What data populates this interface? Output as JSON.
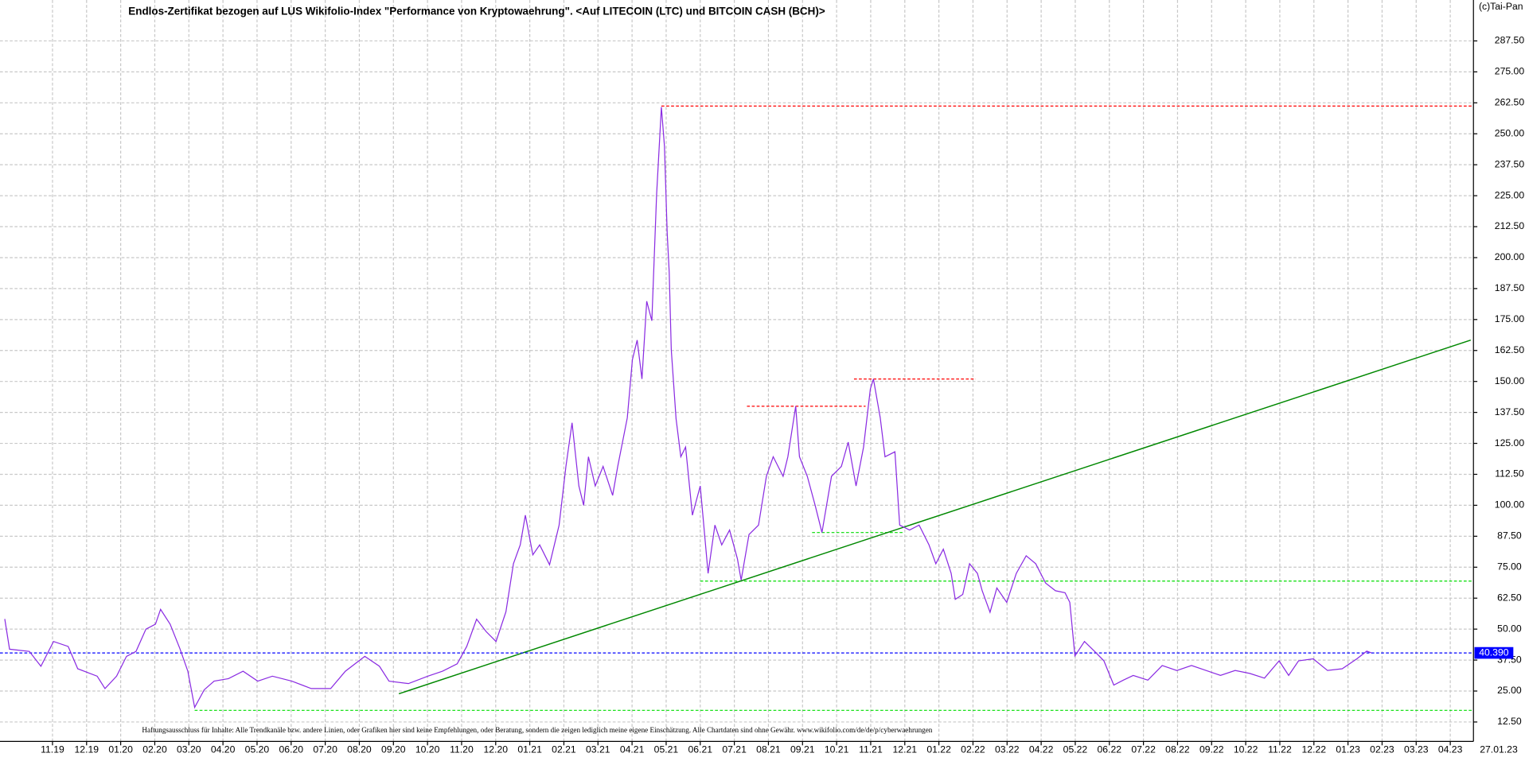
{
  "chart_data": {
    "type": "line",
    "title": "Endlos-Zertifikat bezogen auf LUS Wikifolio-Index \"Performance von Kryptowaehrung\". <Auf LITECOIN (LTC) und BITCOIN CASH (BCH)>",
    "copyright": "(c)Tai-Pan",
    "disclaimer": "Haftungsausschluss für Inhalte: Alle Trendkanäle bzw. andere Linien, oder Grafiken hier sind keine Empfehlungen, oder Beratung, sondern die zeigen lediglich meine eigene Einschätzung. Alle Chartdaten sind ohne Gewähr.  www.wikifolio.com/de/de/p/cyberwaehrungen",
    "color": "#8a2be2",
    "x": [
      -1.4,
      -1.26,
      -0.68,
      -0.34,
      0.03,
      0.46,
      0.74,
      1.31,
      1.54,
      1.88,
      2.17,
      2.45,
      2.74,
      3.02,
      3.17,
      3.45,
      3.74,
      3.97,
      4.17,
      4.45,
      4.74,
      5.16,
      5.59,
      6.02,
      6.45,
      7.02,
      7.59,
      8.16,
      8.59,
      9.16,
      9.59,
      9.87,
      10.44,
      11.01,
      11.44,
      11.87,
      12.15,
      12.44,
      12.72,
      13.01,
      13.3,
      13.52,
      13.72,
      13.87,
      14.09,
      14.29,
      14.58,
      14.86,
      15.06,
      15.24,
      15.44,
      15.58,
      15.72,
      15.92,
      16.15,
      16.43,
      16.58,
      16.86,
      17.01,
      17.15,
      17.29,
      17.43,
      17.58,
      17.72,
      17.86,
      17.95,
      18.03,
      18.09,
      18.15,
      18.29,
      18.43,
      18.57,
      18.77,
      19.0,
      19.23,
      19.43,
      19.63,
      19.86,
      20.09,
      20.2,
      20.43,
      20.71,
      20.94,
      21.14,
      21.43,
      21.57,
      21.8,
      21.91,
      22.14,
      22.37,
      22.57,
      22.85,
      23.14,
      23.34,
      23.57,
      23.79,
      23.99,
      24.08,
      24.28,
      24.42,
      24.71,
      24.85,
      25.14,
      25.42,
      25.71,
      25.91,
      26.13,
      26.36,
      26.48,
      26.7,
      26.9,
      27.13,
      27.27,
      27.5,
      27.7,
      27.99,
      28.27,
      28.56,
      28.84,
      29.13,
      29.42,
      29.7,
      29.84,
      29.99,
      30.27,
      30.56,
      30.84,
      31.13,
      31.41,
      31.7,
      32.13,
      32.55,
      32.98,
      33.41,
      33.84,
      34.26,
      34.69,
      35.12,
      35.55,
      35.98,
      36.26,
      36.55,
      36.98,
      37.4,
      37.83,
      38.26,
      38.55,
      38.69
    ],
    "values": [
      54.1,
      41.9,
      41,
      35,
      45,
      43,
      34,
      31,
      26,
      31,
      39,
      41,
      50,
      52,
      58,
      52,
      42,
      33,
      18.4,
      25.5,
      29,
      30,
      33,
      29,
      31,
      29,
      26,
      26,
      33,
      39,
      35,
      29,
      28,
      31,
      33,
      36,
      43,
      54,
      49,
      45,
      57,
      76.4,
      84,
      96,
      80,
      84,
      76,
      92,
      115.7,
      133.3,
      107.8,
      100,
      119.6,
      107.8,
      115.7,
      104,
      115.7,
      135.3,
      158.8,
      166.7,
      151,
      182.4,
      174.5,
      225.5,
      260.8,
      245,
      210,
      194,
      162.8,
      135,
      119.6,
      123.5,
      96,
      107.8,
      72.5,
      92,
      84,
      90,
      78.4,
      69.8,
      88.2,
      92,
      111.7,
      119.6,
      111.7,
      119.6,
      140,
      119.6,
      111.7,
      100,
      89,
      111.7,
      115.7,
      125.5,
      107.8,
      123.5,
      147,
      151,
      135.3,
      119.6,
      121.6,
      92,
      90,
      92,
      84,
      76.4,
      82.3,
      72.5,
      62,
      64,
      76.4,
      72.5,
      65.5,
      56.8,
      66.6,
      60.8,
      72.5,
      79.6,
      76.4,
      68.6,
      65.5,
      64.7,
      60.8,
      39.2,
      45,
      41.1,
      37.2,
      27.4,
      29.4,
      31.3,
      29.4,
      35.3,
      33.3,
      35.3,
      33.3,
      31.3,
      33.3,
      32.1,
      30.2,
      37.2,
      31.3,
      37.2,
      38,
      33.3,
      34,
      38,
      41.1,
      40.39
    ],
    "xlim": [
      -1.54,
      41.68
    ],
    "ylim": [
      4.65,
      304.0
    ],
    "xticks": [
      {
        "value": 0,
        "label": "11.19"
      },
      {
        "value": 1,
        "label": "12.19"
      },
      {
        "value": 2,
        "label": "01.20"
      },
      {
        "value": 3,
        "label": "02.20"
      },
      {
        "value": 4,
        "label": "03.20"
      },
      {
        "value": 5,
        "label": "04.20"
      },
      {
        "value": 6,
        "label": "05.20"
      },
      {
        "value": 7,
        "label": "06.20"
      },
      {
        "value": 8,
        "label": "07.20"
      },
      {
        "value": 9,
        "label": "08.20"
      },
      {
        "value": 10,
        "label": "09.20"
      },
      {
        "value": 11,
        "label": "10.20"
      },
      {
        "value": 12,
        "label": "11.20"
      },
      {
        "value": 13,
        "label": "12.20"
      },
      {
        "value": 14,
        "label": "01.21"
      },
      {
        "value": 15,
        "label": "02.21"
      },
      {
        "value": 16,
        "label": "03.21"
      },
      {
        "value": 17,
        "label": "04.21"
      },
      {
        "value": 18,
        "label": "05.21"
      },
      {
        "value": 19,
        "label": "06.21"
      },
      {
        "value": 20,
        "label": "07.21"
      },
      {
        "value": 21,
        "label": "08.21"
      },
      {
        "value": 22,
        "label": "09.21"
      },
      {
        "value": 23,
        "label": "10.21"
      },
      {
        "value": 24,
        "label": "11.21"
      },
      {
        "value": 25,
        "label": "12.21"
      },
      {
        "value": 26,
        "label": "01.22"
      },
      {
        "value": 27,
        "label": "02.22"
      },
      {
        "value": 28,
        "label": "03.22"
      },
      {
        "value": 29,
        "label": "04.22"
      },
      {
        "value": 30,
        "label": "05.22"
      },
      {
        "value": 31,
        "label": "06.22"
      },
      {
        "value": 32,
        "label": "07.22"
      },
      {
        "value": 33,
        "label": "08.22"
      },
      {
        "value": 34,
        "label": "09.22"
      },
      {
        "value": 35,
        "label": "10.22"
      },
      {
        "value": 36,
        "label": "11.22"
      },
      {
        "value": 37,
        "label": "12.22"
      },
      {
        "value": 38,
        "label": "01.23"
      },
      {
        "value": 39,
        "label": "02.23"
      },
      {
        "value": 40,
        "label": "03.23"
      },
      {
        "value": 41,
        "label": "04.23"
      }
    ],
    "yticks": [
      {
        "value": 12.5,
        "label": "12.50"
      },
      {
        "value": 25,
        "label": "25.00"
      },
      {
        "value": 37.5,
        "label": "37.50"
      },
      {
        "value": 50,
        "label": "50.00"
      },
      {
        "value": 62.5,
        "label": "62.50"
      },
      {
        "value": 75,
        "label": "75.00"
      },
      {
        "value": 87.5,
        "label": "87.50"
      },
      {
        "value": 100,
        "label": "100.00"
      },
      {
        "value": 112.5,
        "label": "112.50"
      },
      {
        "value": 125,
        "label": "125.00"
      },
      {
        "value": 137.5,
        "label": "137.50"
      },
      {
        "value": 150,
        "label": "150.00"
      },
      {
        "value": 162.5,
        "label": "162.50"
      },
      {
        "value": 175,
        "label": "175.00"
      },
      {
        "value": 187.5,
        "label": "187.50"
      },
      {
        "value": 200,
        "label": "200.00"
      },
      {
        "value": 212.5,
        "label": "212.50"
      },
      {
        "value": 225,
        "label": "225.00"
      },
      {
        "value": 237.5,
        "label": "237.50"
      },
      {
        "value": 250,
        "label": "250.00"
      },
      {
        "value": 262.5,
        "label": "262.50"
      },
      {
        "value": 275,
        "label": "275.00"
      },
      {
        "value": 287.5,
        "label": "287.50"
      }
    ],
    "grid": true,
    "last": {
      "value": 40.39,
      "label": "40.390",
      "date": "27.01.23",
      "color": "#0000ff"
    },
    "lines": [
      {
        "y": [
          261.2,
          261.2
        ],
        "x": [
          17.86,
          41.68
        ],
        "color": "#ff0000"
      },
      {
        "y": [
          140,
          140
        ],
        "x": [
          20.37,
          23.85
        ],
        "color": "#ff0000"
      },
      {
        "y": [
          151,
          151
        ],
        "x": [
          23.51,
          27.08
        ],
        "color": "#ff0000"
      },
      {
        "y": [
          89,
          89
        ],
        "x": [
          22.28,
          24.99
        ],
        "color": "#00dd00"
      },
      {
        "y": [
          69.4,
          69.4
        ],
        "x": [
          19.0,
          41.68
        ],
        "color": "#00dd00"
      },
      {
        "y": [
          17.2,
          17.2
        ],
        "x": [
          4.17,
          41.68
        ],
        "color": "#00dd00"
      }
    ],
    "trendline": {
      "y": [
        23.9,
        166.7
      ],
      "x": [
        10.16,
        41.6
      ],
      "color": "#008800"
    }
  }
}
